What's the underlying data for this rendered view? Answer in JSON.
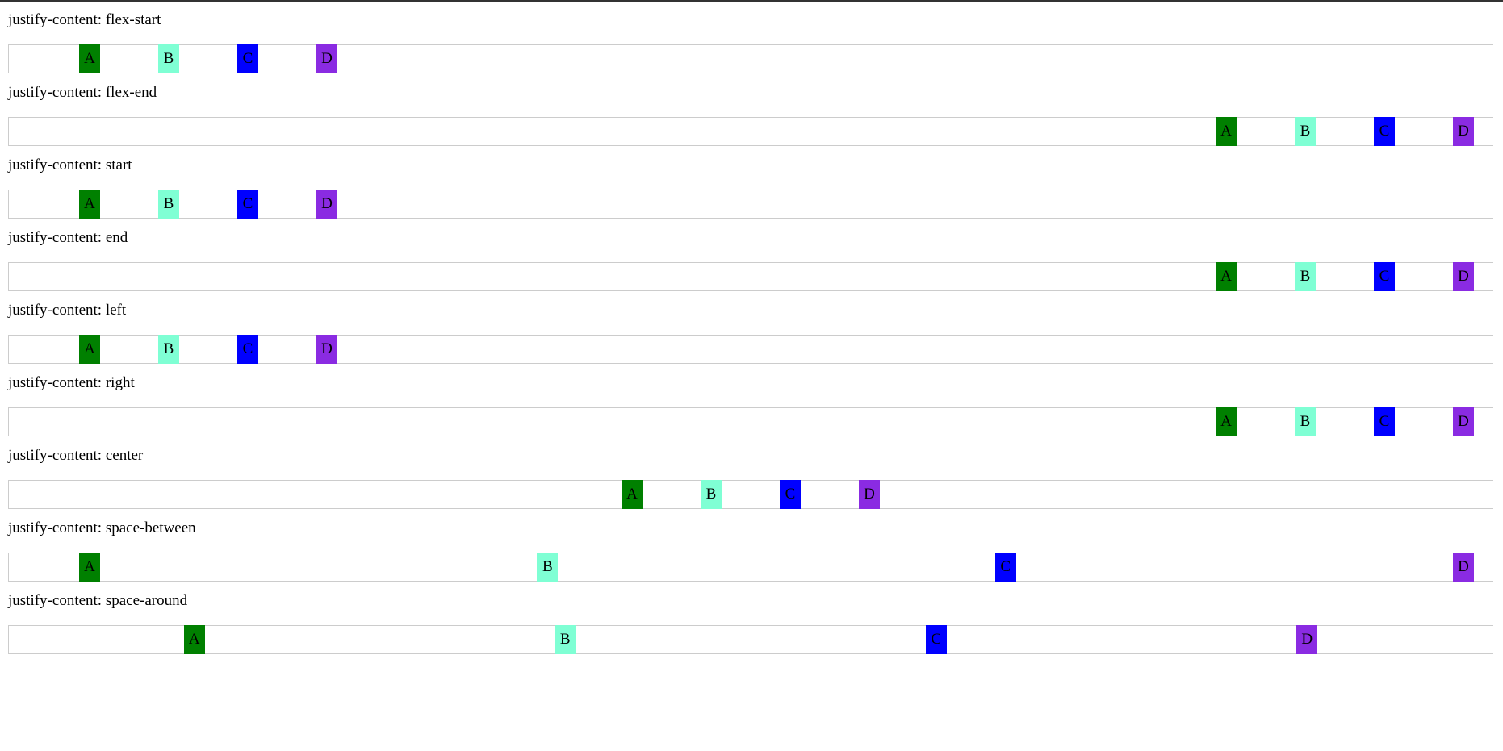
{
  "sections": [
    {
      "label": "justify-content: flex-start",
      "items": [
        "A",
        "B",
        "C",
        "D"
      ]
    },
    {
      "label": "justify-content: flex-end",
      "items": [
        "A",
        "B",
        "C",
        "D"
      ]
    },
    {
      "label": "justify-content: start",
      "items": [
        "A",
        "B",
        "C",
        "D"
      ]
    },
    {
      "label": "justify-content: end",
      "items": [
        "A",
        "B",
        "C",
        "D"
      ]
    },
    {
      "label": "justify-content: left",
      "items": [
        "A",
        "B",
        "C",
        "D"
      ]
    },
    {
      "label": "justify-content: right",
      "items": [
        "A",
        "B",
        "C",
        "D"
      ]
    },
    {
      "label": "justify-content: center",
      "items": [
        "A",
        "B",
        "C",
        "D"
      ]
    },
    {
      "label": "justify-content: space-between",
      "items": [
        "A",
        "B",
        "C",
        "D"
      ]
    },
    {
      "label": "justify-content: space-around",
      "items": [
        "A",
        "B",
        "C",
        "D"
      ]
    }
  ],
  "item_colors": [
    "#008000",
    "#7fffd4",
    "#0000ff",
    "#8a2be2"
  ],
  "border_color": "#cccccc"
}
